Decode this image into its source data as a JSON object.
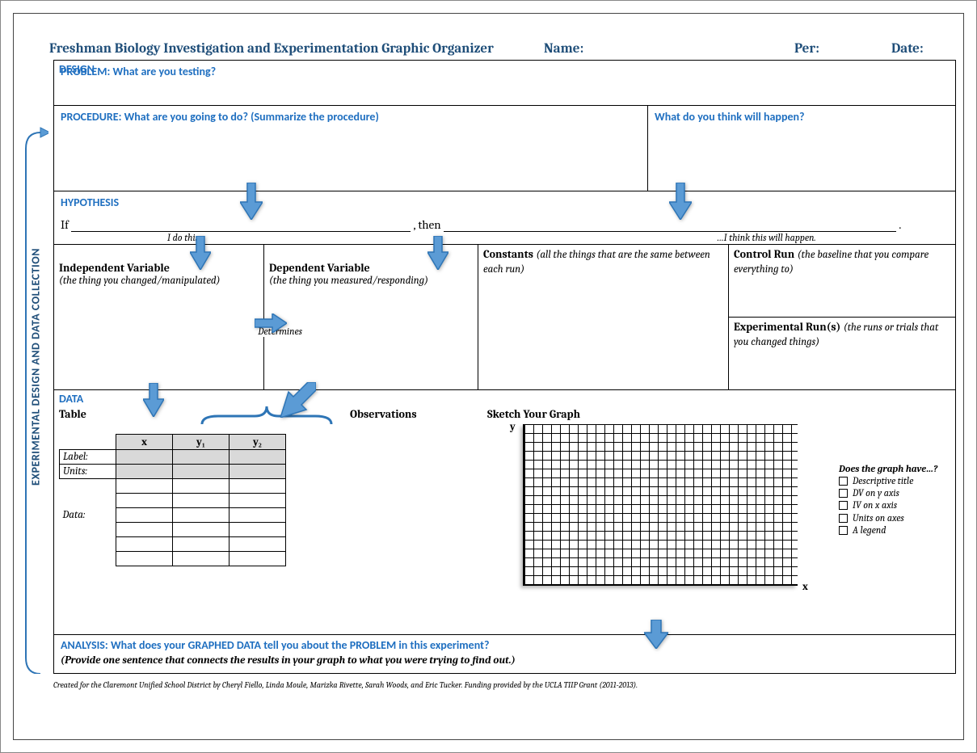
{
  "header": {
    "title": "Freshman Biology Investigation and Experimentation Graphic Organizer",
    "name_label": "Name:",
    "per_label": "Per:",
    "date_label": "Date:"
  },
  "side_label": "EXPERIMENTAL DESIGN AND DATA COLLECTION",
  "sections": {
    "problem": "PROBLEM: What are you testing?",
    "procedure": "PROCEDURE: What are you going to do? (Summarize the procedure)",
    "prediction": "What do you think will happen?",
    "hypothesis": "HYPOTHESIS",
    "hypothesis_line": {
      "if": "If",
      "then": ", then",
      "period": "."
    },
    "hint_left": "I do this…",
    "hint_right": "…I think this will happen.",
    "design": "DESIGN",
    "iv": {
      "title": "Independent Variable",
      "sub": "(the thing you changed/manipulated)"
    },
    "dv": {
      "title": "Dependent Variable",
      "sub": "(the thing you measured/responding)"
    },
    "constants": {
      "title": "Constants",
      "sub": "(all the things that are the same between each run)"
    },
    "control": {
      "title": "Control Run",
      "sub": "(the baseline that you compare everything to)"
    },
    "exprun": {
      "title": "Experimental Run(s)",
      "sub": "(the runs or trials that you changed things)"
    },
    "determines": "Determines",
    "data": "DATA",
    "table_label": "Table",
    "observations_label": "Observations",
    "sketch_label": "Sketch Your Graph",
    "axis_y": "y",
    "axis_x": "x",
    "table": {
      "col_x": "x",
      "col_y1": "y₁",
      "col_y2": "y₂",
      "row_label": "Label:",
      "row_units": "Units:",
      "row_data": "Data:"
    },
    "checklist": {
      "title": "Does the graph have…?",
      "items": [
        "Descriptive title",
        "DV on y axis",
        "IV on x axis",
        "Units on axes",
        "A legend"
      ]
    },
    "analysis_head": "ANALYSIS: What does your GRAPHED DATA tell you about the PROBLEM in this experiment?",
    "analysis_sub": "(Provide one sentence that connects the results in your graph to what you were trying to find out.)"
  },
  "footer": "Created for the Claremont Unified School District by Cheryl Fiello, Linda Moule, Marizka Rivette, Sarah Woods, and Eric Tucker.  Funding provided by the UCLA TIIP Grant (2011-2013).",
  "colors": {
    "heading": "#1f4e79",
    "section": "#1f6fc0",
    "arrow_fill": "#5b9bd5",
    "arrow_stroke": "#2e75b6"
  }
}
